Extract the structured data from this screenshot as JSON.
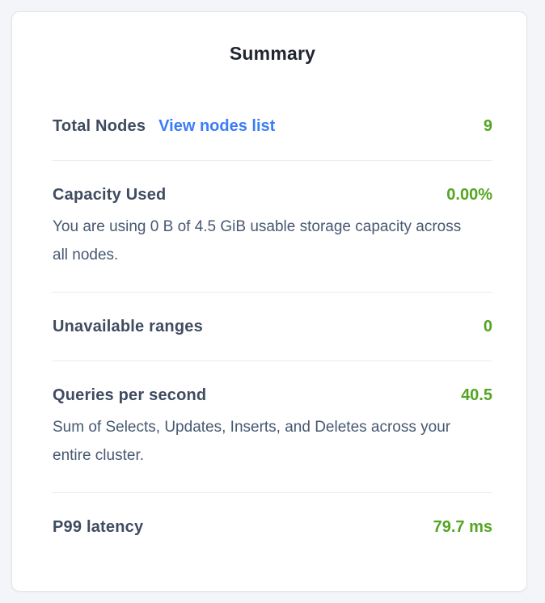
{
  "card": {
    "title": "Summary",
    "sections": [
      {
        "label": "Total Nodes",
        "link": "View nodes list",
        "value": "9"
      },
      {
        "label": "Capacity Used",
        "value": "0.00%",
        "description": "You are using 0 B of 4.5 GiB usable storage capacity across all nodes."
      },
      {
        "label": "Unavailable ranges",
        "value": "0"
      },
      {
        "label": "Queries per second",
        "value": "40.5",
        "description": "Sum of Selects, Updates, Inserts, and Deletes across your entire cluster."
      },
      {
        "label": "P99 latency",
        "value": "79.7 ms"
      }
    ],
    "colors": {
      "page_background": "#f4f5f8",
      "card_background": "#ffffff",
      "card_border": "#e2e4e8",
      "divider": "#e9ebee",
      "title_text": "#20262f",
      "label_text": "#3f4b60",
      "description_text": "#475872",
      "value_green": "#54a523",
      "link_blue": "#3b7cf7"
    }
  }
}
